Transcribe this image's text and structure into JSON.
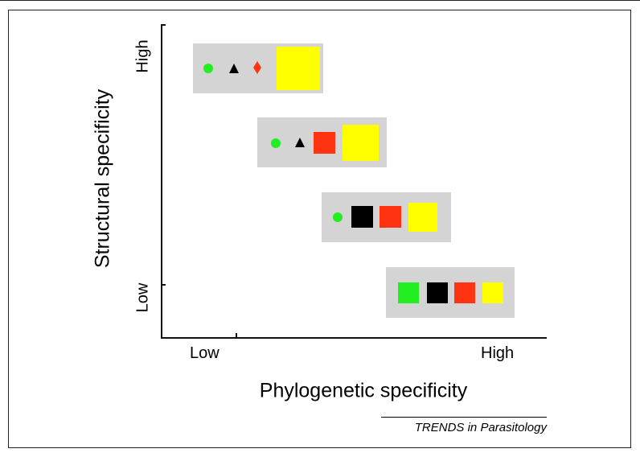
{
  "figure": {
    "y_axis_label": "Structural specificity",
    "y_ticks": {
      "high": "High",
      "low": "Low"
    },
    "x_axis_label": "Phylogenetic specificity",
    "x_ticks": {
      "low": "Low",
      "high": "High"
    },
    "credit": "TRENDS in Parasitology"
  },
  "colors": {
    "panel": "#d4d4d4",
    "green": "#22ee22",
    "black": "#000000",
    "red": "#ff3311",
    "yellow": "#ffff00"
  },
  "rows": [
    {
      "symbols": [
        "green-circle",
        "black-triangle",
        "red-diamond",
        "yellow-square-large"
      ]
    },
    {
      "symbols": [
        "green-circle",
        "black-triangle",
        "red-square",
        "yellow-square-large"
      ]
    },
    {
      "symbols": [
        "green-circle",
        "black-square",
        "red-square",
        "yellow-square"
      ]
    },
    {
      "symbols": [
        "green-square",
        "black-square",
        "red-square",
        "yellow-square-small"
      ]
    }
  ]
}
